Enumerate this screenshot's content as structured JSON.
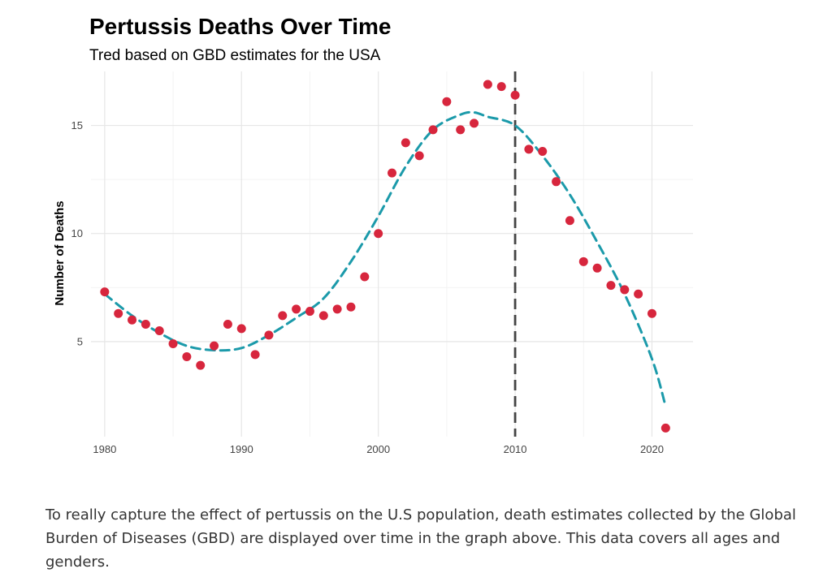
{
  "chart_data": {
    "type": "scatter",
    "title": "Pertussis Deaths Over Time",
    "subtitle": "Tred based on GBD estimates for the USA",
    "ylabel": "Number of Deaths",
    "xlabel": "",
    "xlim": [
      1979,
      2023
    ],
    "ylim": [
      0.6,
      17.5
    ],
    "x_ticks": [
      1980,
      1990,
      2000,
      2010,
      2020
    ],
    "y_ticks": [
      5,
      10,
      15
    ],
    "grid": true,
    "point_color": "#d7263d",
    "trend_color": "#1b9aaa",
    "vline": {
      "x": 2010,
      "color": "#444444",
      "style": "dashed"
    },
    "points": {
      "x": [
        1980,
        1981,
        1982,
        1983,
        1984,
        1985,
        1986,
        1987,
        1988,
        1989,
        1990,
        1991,
        1992,
        1993,
        1994,
        1995,
        1996,
        1997,
        1998,
        1999,
        2000,
        2001,
        2002,
        2003,
        2004,
        2005,
        2006,
        2007,
        2008,
        2009,
        2010,
        2011,
        2012,
        2013,
        2014,
        2015,
        2016,
        2017,
        2018,
        2019,
        2020,
        2021
      ],
      "y": [
        7.3,
        6.3,
        6.0,
        5.8,
        5.5,
        4.9,
        4.3,
        3.9,
        4.8,
        5.8,
        5.6,
        4.4,
        5.3,
        6.2,
        6.5,
        6.4,
        6.2,
        6.5,
        6.6,
        8.0,
        10.0,
        12.8,
        14.2,
        13.6,
        14.8,
        16.1,
        14.8,
        15.1,
        16.9,
        16.8,
        16.4,
        13.9,
        13.8,
        12.4,
        10.6,
        8.7,
        8.4,
        7.6,
        7.4,
        7.2,
        6.3,
        1.0
      ]
    },
    "trend": {
      "x": [
        1980,
        1982,
        1984,
        1986,
        1988,
        1990,
        1992,
        1994,
        1996,
        1998,
        2000,
        2002,
        2004,
        2006,
        2007,
        2008,
        2010,
        2012,
        2014,
        2016,
        2018,
        2020,
        2021
      ],
      "y": [
        7.2,
        6.2,
        5.4,
        4.8,
        4.6,
        4.7,
        5.3,
        6.1,
        7.0,
        8.7,
        10.8,
        13.1,
        14.8,
        15.5,
        15.6,
        15.4,
        15.0,
        13.6,
        11.8,
        9.6,
        7.2,
        4.2,
        2.0
      ]
    }
  },
  "caption": "To really capture the effect of pertussis on the U.S population, death estimates collected by the Global Burden of Diseases (GBD) are displayed over time in the graph above. This data covers all ages and genders."
}
